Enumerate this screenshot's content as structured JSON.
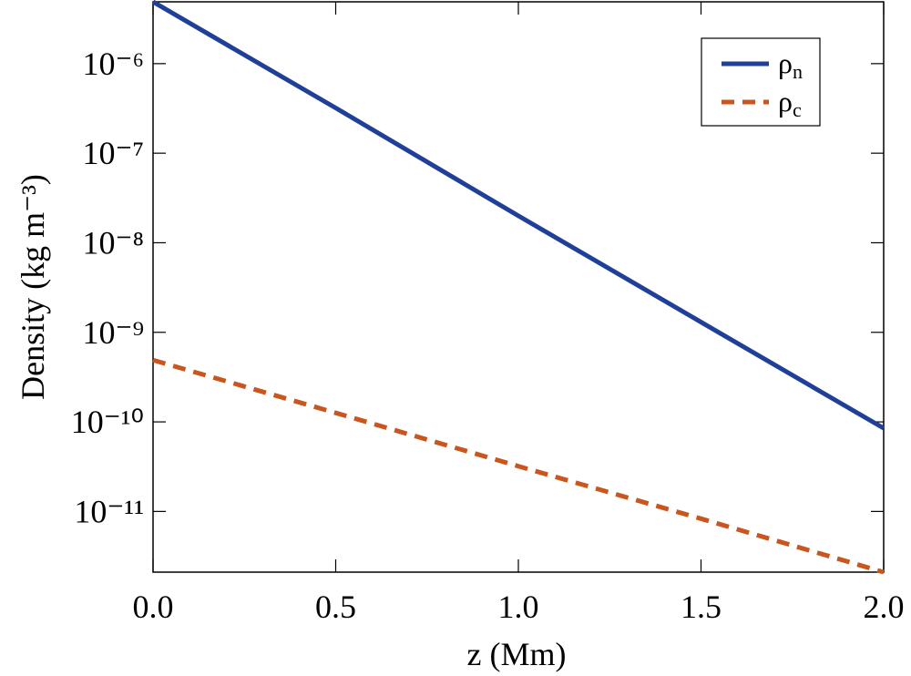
{
  "chart_data": {
    "type": "line",
    "x_label": "z (Mm)",
    "y_label": "Density (kg m⁻³)",
    "log_y": true,
    "legend": "top-right",
    "xlim": [
      0,
      2
    ],
    "ylim": [
      2.1e-12,
      4.9e-06
    ],
    "xticks": [
      {
        "value": 0,
        "label": "0.0"
      },
      0.5,
      {
        "value": 1,
        "label": "1.0"
      },
      1.5,
      {
        "value": 2,
        "label": "2.0"
      }
    ],
    "yticks": [
      {
        "value": 1e-11,
        "label": "10⁻¹¹"
      },
      {
        "value": 1e-10,
        "label": "10⁻¹⁰"
      },
      {
        "value": 1e-09,
        "label": "10⁻⁹"
      },
      {
        "value": 1e-08,
        "label": "10⁻⁸"
      },
      {
        "value": 1e-07,
        "label": "10⁻⁷"
      },
      {
        "value": 1e-06,
        "label": "10⁻⁶"
      }
    ],
    "x": [
      0,
      0.5,
      1,
      1.5,
      2
    ],
    "series": [
      {
        "name": "ρn",
        "color": "#1f3f99",
        "dash": false,
        "values": [
          4.9e-06,
          3.2e-07,
          2e-08,
          1.3e-09,
          8.5e-11
        ]
      },
      {
        "name": "ρc",
        "color": "#c8561e",
        "dash": true,
        "values": [
          4.9e-10,
          1.26e-10,
          3.2e-11,
          8.3e-12,
          2.1e-12
        ]
      }
    ]
  }
}
